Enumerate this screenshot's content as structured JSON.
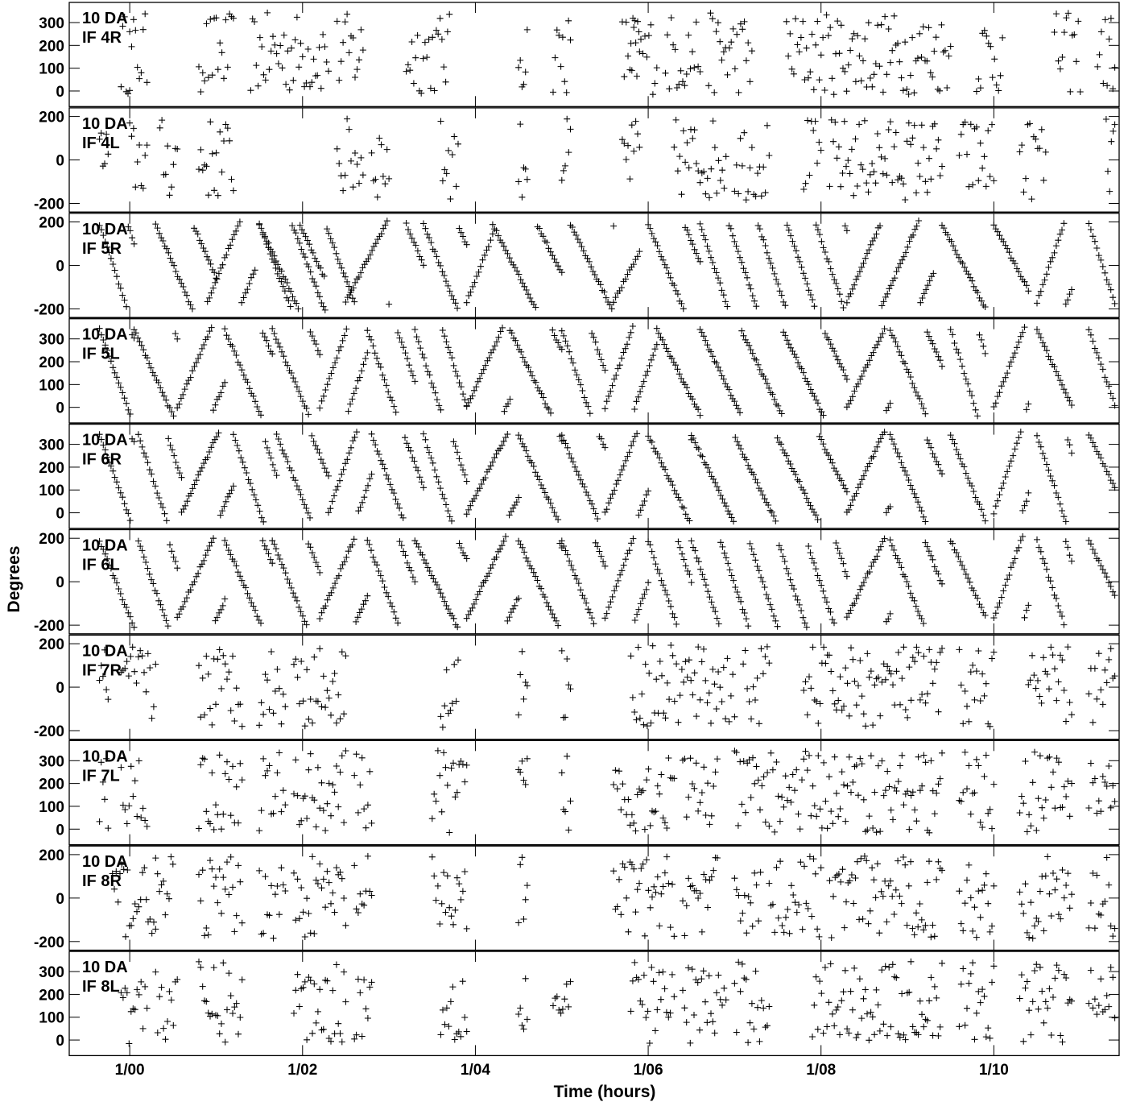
{
  "chart_data": {
    "type": "scatter",
    "marker": "+",
    "xlabel": "Time (hours)",
    "ylabel": "Degrees",
    "x_tick_labels": [
      "1/00",
      "1/02",
      "1/04",
      "1/06",
      "1/08",
      "1/10"
    ],
    "xlim_hours": [
      23.3,
      35.45
    ],
    "panels": [
      {
        "line1": "10 DA",
        "line2": "IF 4R",
        "ylim": [
          -40,
          360
        ],
        "yticks": [
          "0",
          "100",
          "200",
          "300"
        ],
        "pattern": "random",
        "segments": [
          [
            23.9,
            24.0
          ],
          [
            24.0,
            24.2
          ],
          [
            24.8,
            25.2
          ],
          [
            25.4,
            26.3
          ],
          [
            26.4,
            26.7
          ],
          [
            27.2,
            27.7
          ],
          [
            28.5,
            28.6
          ],
          [
            28.9,
            29.1
          ],
          [
            29.7,
            29.9
          ],
          [
            29.8,
            30.1
          ],
          [
            30.2,
            30.6
          ],
          [
            30.7,
            31.2
          ],
          [
            31.6,
            33.5
          ],
          [
            33.8,
            34.1
          ],
          [
            34.7,
            35.0
          ],
          [
            35.2,
            35.4
          ]
        ]
      },
      {
        "line1": "10 DA",
        "line2": "IF 4L",
        "ylim": [
          -210,
          210
        ],
        "yticks": [
          "-200",
          "0",
          "200"
        ],
        "pattern": "random",
        "segments": [
          [
            23.65,
            23.75
          ],
          [
            24.0,
            24.2
          ],
          [
            24.35,
            24.55
          ],
          [
            24.8,
            25.2
          ],
          [
            26.4,
            26.7
          ],
          [
            26.8,
            27.0
          ],
          [
            27.6,
            27.8
          ],
          [
            28.5,
            28.6
          ],
          [
            29.0,
            29.1
          ],
          [
            29.7,
            29.9
          ],
          [
            30.3,
            30.9
          ],
          [
            31.0,
            31.4
          ],
          [
            31.8,
            32.0
          ],
          [
            32.1,
            33.4
          ],
          [
            33.6,
            34.0
          ],
          [
            34.3,
            34.6
          ],
          [
            35.3,
            35.4
          ]
        ]
      },
      {
        "line1": "10 DA",
        "line2": "IF 5R",
        "ylim": [
          -210,
          210
        ],
        "yticks": [
          "-200",
          "0",
          "200"
        ],
        "pattern": "wrap",
        "segments": [
          [
            23.65,
            24.05
          ],
          [
            24.3,
            25.0
          ],
          [
            24.9,
            25.45
          ],
          [
            25.5,
            26.25
          ],
          [
            25.5,
            26.6
          ],
          [
            26.5,
            27.0
          ],
          [
            27.2,
            27.4
          ],
          [
            27.4,
            27.9
          ],
          [
            27.9,
            28.2
          ],
          [
            28.2,
            29.0
          ],
          [
            29.1,
            29.6
          ],
          [
            29.6,
            29.9
          ],
          [
            30.0,
            30.6
          ],
          [
            30.6,
            32.3
          ],
          [
            32.3,
            33.3
          ],
          [
            33.4,
            33.9
          ],
          [
            34.0,
            34.4
          ],
          [
            34.5,
            34.9
          ],
          [
            35.1,
            35.4
          ]
        ]
      },
      {
        "line1": "10 DA",
        "line2": "IF 5L",
        "ylim": [
          -40,
          360
        ],
        "yticks": [
          "0",
          "100",
          "200",
          "300"
        ],
        "pattern": "wrap",
        "segments": [
          [
            23.65,
            24.05
          ],
          [
            24.05,
            24.55
          ],
          [
            24.55,
            25.1
          ],
          [
            25.1,
            25.65
          ],
          [
            25.65,
            26.2
          ],
          [
            26.2,
            26.75
          ],
          [
            26.75,
            27.3
          ],
          [
            27.3,
            27.9
          ],
          [
            27.9,
            28.4
          ],
          [
            28.4,
            29.0
          ],
          [
            29.0,
            29.5
          ],
          [
            29.5,
            30.1
          ],
          [
            30.1,
            30.6
          ],
          [
            30.6,
            32.3
          ],
          [
            32.3,
            32.8
          ],
          [
            32.8,
            33.4
          ],
          [
            33.5,
            33.9
          ],
          [
            34.0,
            34.4
          ],
          [
            34.5,
            34.9
          ],
          [
            35.1,
            35.4
          ]
        ]
      },
      {
        "line1": "10 DA",
        "line2": "IF 6R",
        "ylim": [
          -40,
          360
        ],
        "yticks": [
          "0",
          "100",
          "200",
          "300"
        ],
        "pattern": "wrap",
        "segments": [
          [
            23.65,
            24.05
          ],
          [
            24.1,
            24.6
          ],
          [
            24.6,
            25.2
          ],
          [
            25.2,
            25.7
          ],
          [
            25.7,
            26.3
          ],
          [
            26.3,
            26.8
          ],
          [
            26.8,
            27.4
          ],
          [
            27.4,
            27.9
          ],
          [
            27.9,
            28.5
          ],
          [
            28.5,
            29.0
          ],
          [
            29.0,
            29.5
          ],
          [
            29.5,
            30.0
          ],
          [
            30.0,
            30.5
          ],
          [
            30.5,
            32.3
          ],
          [
            32.3,
            32.8
          ],
          [
            32.8,
            33.4
          ],
          [
            33.5,
            33.9
          ],
          [
            34.0,
            34.4
          ],
          [
            34.5,
            34.9
          ],
          [
            35.1,
            35.4
          ]
        ]
      },
      {
        "line1": "10 DA",
        "line2": "IF 6L",
        "ylim": [
          -210,
          210
        ],
        "yticks": [
          "-200",
          "0",
          "200"
        ],
        "pattern": "wrap",
        "segments": [
          [
            23.65,
            24.05
          ],
          [
            24.1,
            24.55
          ],
          [
            24.55,
            25.1
          ],
          [
            25.1,
            25.65
          ],
          [
            25.65,
            26.2
          ],
          [
            26.2,
            26.75
          ],
          [
            26.75,
            27.3
          ],
          [
            27.3,
            27.9
          ],
          [
            27.9,
            28.5
          ],
          [
            28.5,
            29.0
          ],
          [
            29.0,
            29.5
          ],
          [
            29.5,
            30.0
          ],
          [
            30.0,
            30.5
          ],
          [
            30.5,
            32.3
          ],
          [
            32.3,
            32.8
          ],
          [
            32.8,
            33.4
          ],
          [
            33.5,
            33.9
          ],
          [
            34.0,
            34.4
          ],
          [
            34.5,
            34.9
          ],
          [
            35.1,
            35.4
          ]
        ]
      },
      {
        "line1": "10 DA",
        "line2": "IF 7R",
        "ylim": [
          -210,
          210
        ],
        "yticks": [
          "-200",
          "0",
          "200"
        ],
        "pattern": "random",
        "segments": [
          [
            23.65,
            23.75
          ],
          [
            23.9,
            24.3
          ],
          [
            24.8,
            25.3
          ],
          [
            25.5,
            25.8
          ],
          [
            25.9,
            26.5
          ],
          [
            27.6,
            27.8
          ],
          [
            28.5,
            28.6
          ],
          [
            29.0,
            29.1
          ],
          [
            29.8,
            31.0
          ],
          [
            31.1,
            31.4
          ],
          [
            31.8,
            33.4
          ],
          [
            33.6,
            34.0
          ],
          [
            34.4,
            34.9
          ],
          [
            35.1,
            35.4
          ]
        ]
      },
      {
        "line1": "10 DA",
        "line2": "IF 7L",
        "ylim": [
          -40,
          360
        ],
        "yticks": [
          "0",
          "100",
          "200",
          "300"
        ],
        "pattern": "random",
        "segments": [
          [
            23.65,
            23.75
          ],
          [
            23.9,
            24.2
          ],
          [
            24.8,
            25.3
          ],
          [
            25.5,
            25.8
          ],
          [
            25.9,
            26.5
          ],
          [
            26.6,
            26.8
          ],
          [
            27.5,
            27.9
          ],
          [
            28.5,
            28.6
          ],
          [
            29.0,
            29.1
          ],
          [
            29.6,
            30.3
          ],
          [
            30.4,
            30.8
          ],
          [
            31.0,
            33.4
          ],
          [
            33.6,
            34.0
          ],
          [
            34.3,
            34.9
          ],
          [
            35.1,
            35.4
          ]
        ]
      },
      {
        "line1": "10 DA",
        "line2": "IF 8R",
        "ylim": [
          -210,
          210
        ],
        "yticks": [
          "-200",
          "0",
          "200"
        ],
        "pattern": "random",
        "segments": [
          [
            23.8,
            24.3
          ],
          [
            24.3,
            24.5
          ],
          [
            24.8,
            25.3
          ],
          [
            25.5,
            25.8
          ],
          [
            25.9,
            26.5
          ],
          [
            26.6,
            26.8
          ],
          [
            27.5,
            27.9
          ],
          [
            28.5,
            28.6
          ],
          [
            29.6,
            30.3
          ],
          [
            30.4,
            30.8
          ],
          [
            31.0,
            31.3
          ],
          [
            31.4,
            32.0
          ],
          [
            32.1,
            33.4
          ],
          [
            33.6,
            34.0
          ],
          [
            34.3,
            34.9
          ],
          [
            35.1,
            35.4
          ]
        ]
      },
      {
        "line1": "10 DA",
        "line2": "IF 8L",
        "ylim": [
          -40,
          360
        ],
        "yticks": [
          "0",
          "100",
          "200",
          "300"
        ],
        "pattern": "random",
        "segments": [
          [
            23.9,
            24.2
          ],
          [
            24.3,
            24.55
          ],
          [
            24.8,
            25.3
          ],
          [
            25.9,
            26.5
          ],
          [
            26.6,
            26.8
          ],
          [
            27.6,
            27.9
          ],
          [
            28.5,
            28.6
          ],
          [
            28.9,
            29.1
          ],
          [
            29.8,
            30.3
          ],
          [
            30.4,
            30.9
          ],
          [
            31.0,
            31.4
          ],
          [
            31.9,
            33.4
          ],
          [
            33.6,
            34.0
          ],
          [
            34.3,
            34.9
          ],
          [
            35.1,
            35.4
          ]
        ]
      }
    ]
  }
}
